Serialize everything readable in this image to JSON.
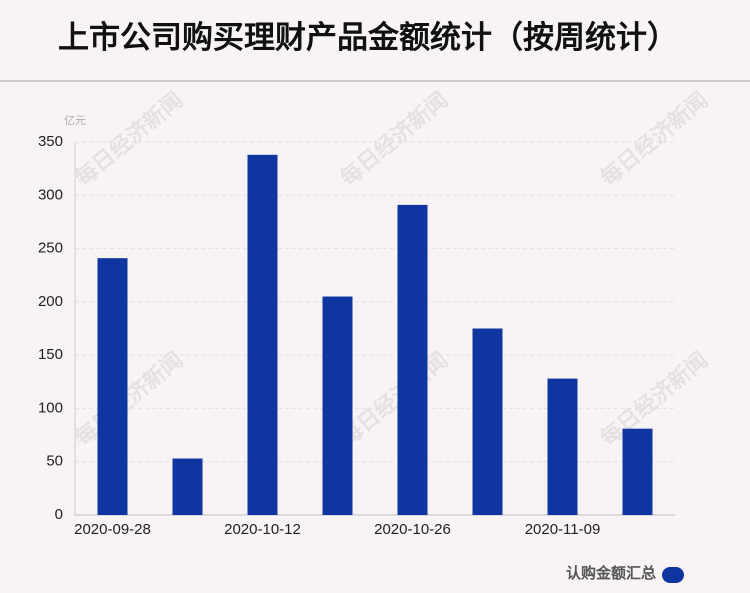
{
  "chart_data": {
    "type": "bar",
    "title": "上市公司购买理财产品金额统计（按周统计）",
    "y_unit": "亿元",
    "watermark": "每日经济新闻",
    "categories": [
      "2020-09-28",
      null,
      "2020-10-12",
      null,
      "2020-10-26",
      null,
      "2020-11-09",
      null
    ],
    "series": [
      {
        "name": "认购金额汇总",
        "color": "#0e35a0",
        "values": [
          241,
          53,
          338,
          205,
          291,
          175,
          128,
          81
        ]
      }
    ],
    "ylim": [
      0,
      350
    ],
    "yticks": [
      0,
      50,
      100,
      150,
      200,
      250,
      300,
      350
    ],
    "grid": true,
    "legend": "bottom-right"
  }
}
